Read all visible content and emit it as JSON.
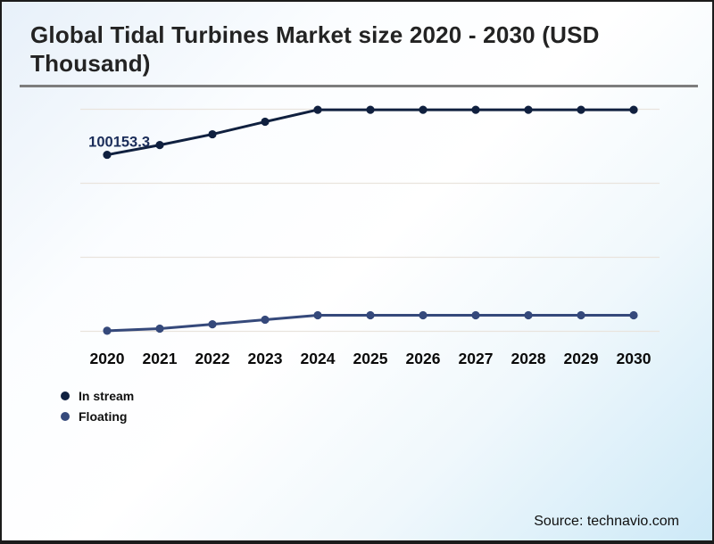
{
  "header": {
    "title": "Global Tidal Turbines Market size 2020 - 2030 (USD Thousand)"
  },
  "footer": {
    "source": "Source: technavio.com"
  },
  "legend": {
    "items": [
      {
        "label": "In stream",
        "color": "#10203f"
      },
      {
        "label": "Floating",
        "color": "#35497b"
      }
    ]
  },
  "colors": {
    "in_stream_line": "#10203f",
    "floating_line": "#35497b",
    "gridline": "#e9e4dd",
    "data_label_text": "#1b2d5a",
    "axis_label_text": "#0a0a0a"
  },
  "chart_data": {
    "type": "line",
    "title": "Global Tidal Turbines Market size 2020 - 2030 (USD Thousand)",
    "categories": [
      "2020",
      "2021",
      "2022",
      "2023",
      "2024",
      "2025",
      "2026",
      "2027",
      "2028",
      "2029",
      "2030"
    ],
    "series": [
      {
        "name": "In stream",
        "color": "#10203f",
        "values": [
          100153.3,
          105700,
          111800,
          118900,
          125700,
          125700,
          125700,
          125700,
          125700,
          125700,
          125700
        ]
      },
      {
        "name": "Floating",
        "color": "#35497b",
        "values": [
          300,
          1500,
          4000,
          6600,
          9100,
          9100,
          9100,
          9100,
          9100,
          9100,
          9100
        ]
      }
    ],
    "data_labels": [
      {
        "series": "In stream",
        "category": "2020",
        "text": "100153.3"
      }
    ],
    "ylim": [
      0,
      126000
    ],
    "gridlines": 4,
    "grid": "horizontal",
    "legend_position": "bottom-left"
  }
}
